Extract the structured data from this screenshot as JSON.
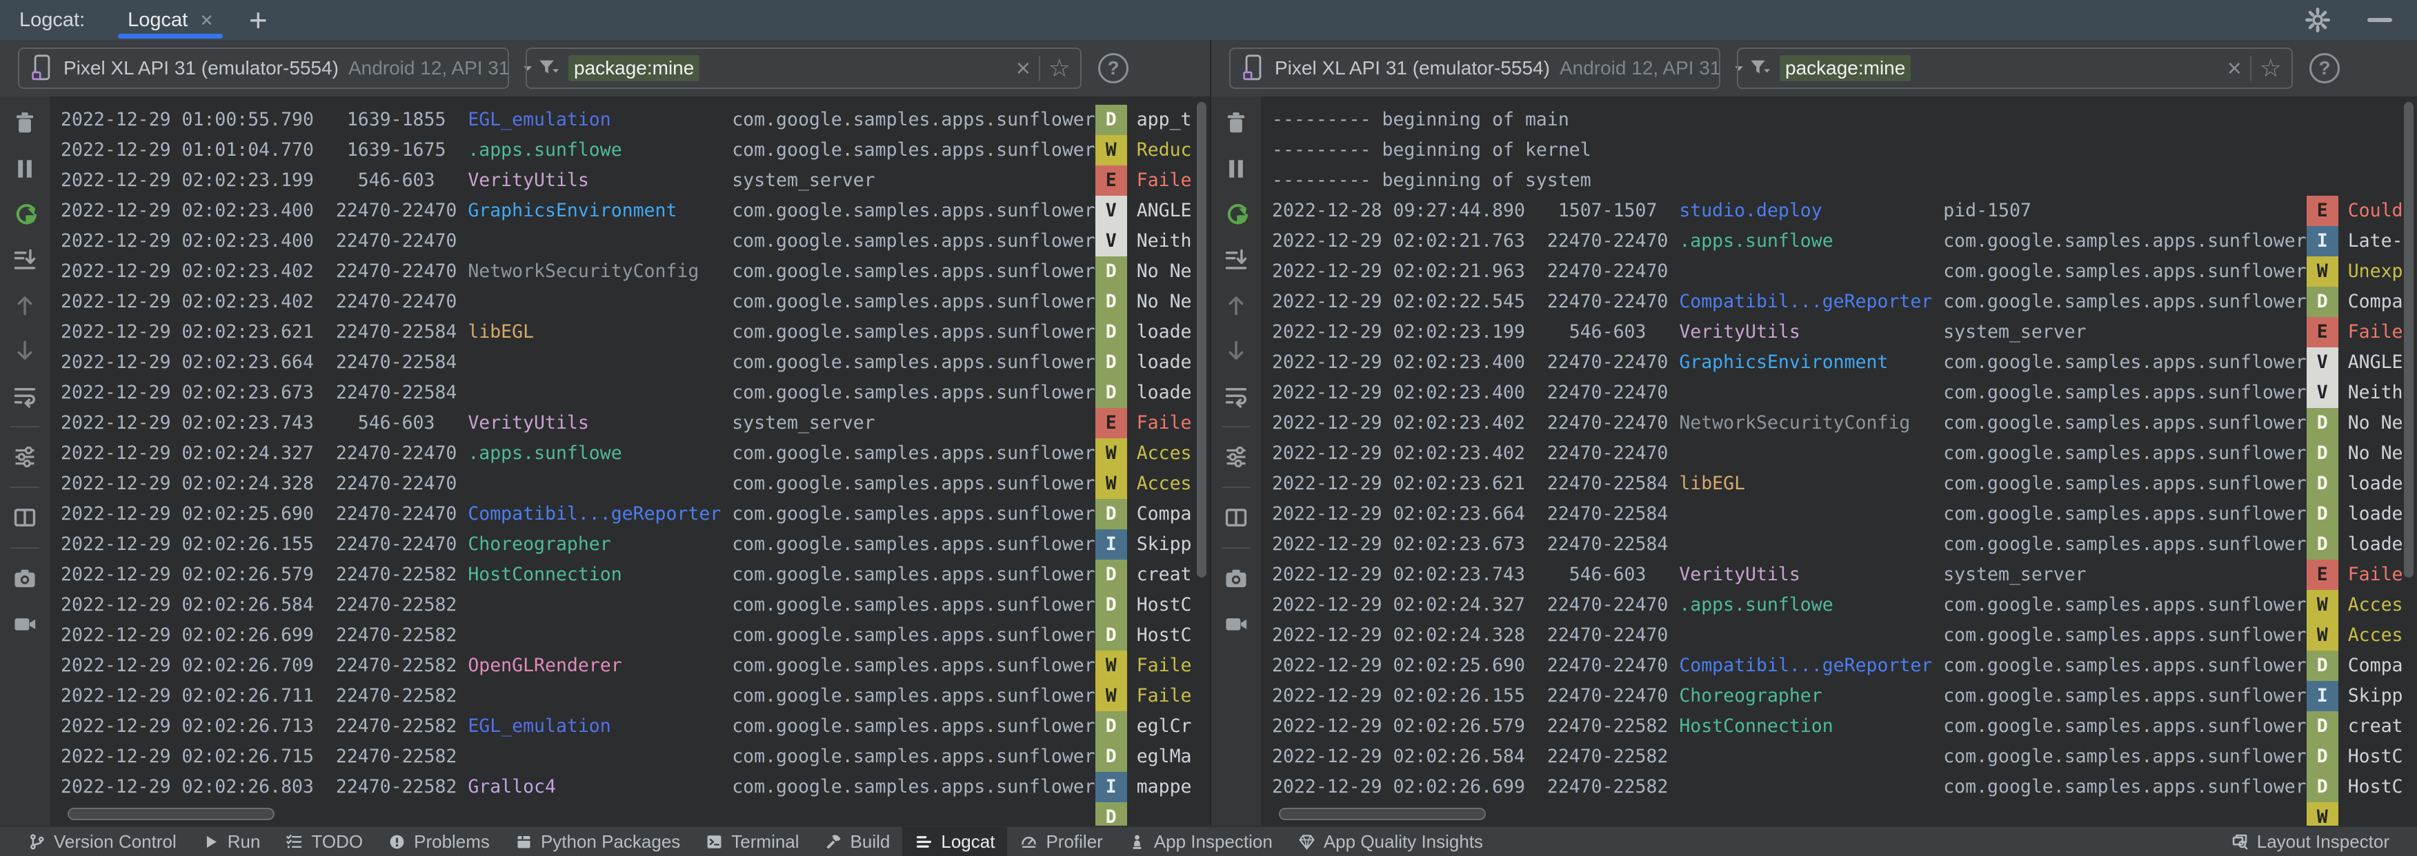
{
  "window": {
    "tab_strip": {
      "panel_label": "Logcat:",
      "tab": "Logcat",
      "close_glyph": "×",
      "add_glyph": "+"
    },
    "accent_color": "#3674F0"
  },
  "side_toolbar": {
    "groups": [
      [
        "clear-logcat",
        "pause-logcat",
        "restart-logcat",
        "scroll-to-end",
        "previous-occurrence",
        "next-occurrence",
        "soft-wrap"
      ],
      [
        "logcat-settings"
      ],
      [
        "split-panes"
      ],
      [
        "take-screenshot",
        "record-screen"
      ]
    ]
  },
  "filter_icons": {
    "clear_glyph": "×",
    "favorite_glyph": "☆",
    "help_glyph": "?"
  },
  "level_styles": {
    "D": {
      "badge_bg": "#8CA05D",
      "badge_fg": "#F6F9EF",
      "message": "#CDD3D9"
    },
    "W": {
      "badge_bg": "#C2B83F",
      "badge_fg": "#23251F",
      "message": "#C9BF45"
    },
    "E": {
      "badge_bg": "#CD6A5F",
      "badge_fg": "#2A2221",
      "message": "#F2766C"
    },
    "V": {
      "badge_bg": "#D9DAD6",
      "badge_fg": "#212325",
      "message": "#D2D6DA"
    },
    "I": {
      "badge_bg": "#48708D",
      "badge_fg": "#E5ECF2",
      "message": "#CDD3D9"
    }
  },
  "tag_colors": {
    "EGL_emulation": "#5372E8",
    ".apps.sunflowe": "#4FBA9C",
    "VerityUtils": "#CBA3CF",
    "GraphicsEnvironment": "#41A8F2",
    "NetworkSecurityConfig": "#8E969E",
    "libEGL": "#D8A96B",
    "Compatibil...geReporter": "#4C7EF0",
    "Choreographer": "#4FBA9C",
    "HostConnection": "#4FBA9C",
    "OpenGLRenderer": "#E08BB8",
    "Gralloc4": "#C2A3DE",
    "studio.deploy": "#4C7EF0"
  },
  "panes": [
    {
      "device": {
        "name": "Pixel XL API 31 (emulator-5554)",
        "details": "Android 12, API 31"
      },
      "filter": "package:mine",
      "rows": [
        {
          "time": "2022-12-29 01:00:55.790",
          "pid": "1639-1855",
          "tag": "EGL_emulation",
          "pkg": "com.google.samples.apps.sunflower",
          "level": "D",
          "msg": "app_t"
        },
        {
          "time": "2022-12-29 01:01:04.770",
          "pid": "1639-1675",
          "tag": ".apps.sunflowe",
          "pkg": "com.google.samples.apps.sunflower",
          "level": "W",
          "msg": "Reduc"
        },
        {
          "time": "2022-12-29 02:02:23.199",
          "pid": "546-603",
          "tag": "VerityUtils",
          "pkg": "system_server",
          "level": "E",
          "msg": "Faile"
        },
        {
          "time": "2022-12-29 02:02:23.400",
          "pid": "22470-22470",
          "tag": "GraphicsEnvironment",
          "pkg": "com.google.samples.apps.sunflower",
          "level": "V",
          "msg": "ANGLE"
        },
        {
          "time": "2022-12-29 02:02:23.400",
          "pid": "22470-22470",
          "tag": "",
          "pkg": "com.google.samples.apps.sunflower",
          "level": "V",
          "msg": "Neith"
        },
        {
          "time": "2022-12-29 02:02:23.402",
          "pid": "22470-22470",
          "tag": "NetworkSecurityConfig",
          "pkg": "com.google.samples.apps.sunflower",
          "level": "D",
          "msg": "No Ne"
        },
        {
          "time": "2022-12-29 02:02:23.402",
          "pid": "22470-22470",
          "tag": "",
          "pkg": "com.google.samples.apps.sunflower",
          "level": "D",
          "msg": "No Ne"
        },
        {
          "time": "2022-12-29 02:02:23.621",
          "pid": "22470-22584",
          "tag": "libEGL",
          "pkg": "com.google.samples.apps.sunflower",
          "level": "D",
          "msg": "loade"
        },
        {
          "time": "2022-12-29 02:02:23.664",
          "pid": "22470-22584",
          "tag": "",
          "pkg": "com.google.samples.apps.sunflower",
          "level": "D",
          "msg": "loade"
        },
        {
          "time": "2022-12-29 02:02:23.673",
          "pid": "22470-22584",
          "tag": "",
          "pkg": "com.google.samples.apps.sunflower",
          "level": "D",
          "msg": "loade"
        },
        {
          "time": "2022-12-29 02:02:23.743",
          "pid": "546-603",
          "tag": "VerityUtils",
          "pkg": "system_server",
          "level": "E",
          "msg": "Faile"
        },
        {
          "time": "2022-12-29 02:02:24.327",
          "pid": "22470-22470",
          "tag": ".apps.sunflowe",
          "pkg": "com.google.samples.apps.sunflower",
          "level": "W",
          "msg": "Acces"
        },
        {
          "time": "2022-12-29 02:02:24.328",
          "pid": "22470-22470",
          "tag": "",
          "pkg": "com.google.samples.apps.sunflower",
          "level": "W",
          "msg": "Acces"
        },
        {
          "time": "2022-12-29 02:02:25.690",
          "pid": "22470-22470",
          "tag": "Compatibil...geReporter",
          "pkg": "com.google.samples.apps.sunflower",
          "level": "D",
          "msg": "Compa"
        },
        {
          "time": "2022-12-29 02:02:26.155",
          "pid": "22470-22470",
          "tag": "Choreographer",
          "pkg": "com.google.samples.apps.sunflower",
          "level": "I",
          "msg": "Skipp"
        },
        {
          "time": "2022-12-29 02:02:26.579",
          "pid": "22470-22582",
          "tag": "HostConnection",
          "pkg": "com.google.samples.apps.sunflower",
          "level": "D",
          "msg": "creat"
        },
        {
          "time": "2022-12-29 02:02:26.584",
          "pid": "22470-22582",
          "tag": "",
          "pkg": "com.google.samples.apps.sunflower",
          "level": "D",
          "msg": "HostC"
        },
        {
          "time": "2022-12-29 02:02:26.699",
          "pid": "22470-22582",
          "tag": "",
          "pkg": "com.google.samples.apps.sunflower",
          "level": "D",
          "msg": "HostC"
        },
        {
          "time": "2022-12-29 02:02:26.709",
          "pid": "22470-22582",
          "tag": "OpenGLRenderer",
          "pkg": "com.google.samples.apps.sunflower",
          "level": "W",
          "msg": "Faile"
        },
        {
          "time": "2022-12-29 02:02:26.711",
          "pid": "22470-22582",
          "tag": "",
          "pkg": "com.google.samples.apps.sunflower",
          "level": "W",
          "msg": "Faile"
        },
        {
          "time": "2022-12-29 02:02:26.713",
          "pid": "22470-22582",
          "tag": "EGL_emulation",
          "pkg": "com.google.samples.apps.sunflower",
          "level": "D",
          "msg": "eglCr"
        },
        {
          "time": "2022-12-29 02:02:26.715",
          "pid": "22470-22582",
          "tag": "",
          "pkg": "com.google.samples.apps.sunflower",
          "level": "D",
          "msg": "eglMa"
        },
        {
          "time": "2022-12-29 02:02:26.803",
          "pid": "22470-22582",
          "tag": "Gralloc4",
          "pkg": "com.google.samples.apps.sunflower",
          "level": "I",
          "msg": "mappe"
        },
        {
          "partial": true,
          "level": "D"
        }
      ]
    },
    {
      "device": {
        "name": "Pixel XL API 31 (emulator-5554)",
        "details": "Android 12, API 31"
      },
      "filter": "package:mine",
      "rows": [
        {
          "banner": "--------- beginning of main"
        },
        {
          "banner": "--------- beginning of kernel"
        },
        {
          "banner": "--------- beginning of system"
        },
        {
          "time": "2022-12-28 09:27:44.890",
          "pid": "1507-1507",
          "tag": "studio.deploy",
          "pkg": "pid-1507",
          "level": "E",
          "msg": "Could"
        },
        {
          "time": "2022-12-29 02:02:21.763",
          "pid": "22470-22470",
          "tag": ".apps.sunflowe",
          "pkg": "com.google.samples.apps.sunflower",
          "level": "I",
          "msg": "Late-"
        },
        {
          "time": "2022-12-29 02:02:21.963",
          "pid": "22470-22470",
          "tag": "",
          "pkg": "com.google.samples.apps.sunflower",
          "level": "W",
          "msg": "Unexp"
        },
        {
          "time": "2022-12-29 02:02:22.545",
          "pid": "22470-22470",
          "tag": "Compatibil...geReporter",
          "pkg": "com.google.samples.apps.sunflower",
          "level": "D",
          "msg": "Compa"
        },
        {
          "time": "2022-12-29 02:02:23.199",
          "pid": "546-603",
          "tag": "VerityUtils",
          "pkg": "system_server",
          "level": "E",
          "msg": "Faile"
        },
        {
          "time": "2022-12-29 02:02:23.400",
          "pid": "22470-22470",
          "tag": "GraphicsEnvironment",
          "pkg": "com.google.samples.apps.sunflower",
          "level": "V",
          "msg": "ANGLE"
        },
        {
          "time": "2022-12-29 02:02:23.400",
          "pid": "22470-22470",
          "tag": "",
          "pkg": "com.google.samples.apps.sunflower",
          "level": "V",
          "msg": "Neith"
        },
        {
          "time": "2022-12-29 02:02:23.402",
          "pid": "22470-22470",
          "tag": "NetworkSecurityConfig",
          "pkg": "com.google.samples.apps.sunflower",
          "level": "D",
          "msg": "No Ne"
        },
        {
          "time": "2022-12-29 02:02:23.402",
          "pid": "22470-22470",
          "tag": "",
          "pkg": "com.google.samples.apps.sunflower",
          "level": "D",
          "msg": "No Ne"
        },
        {
          "time": "2022-12-29 02:02:23.621",
          "pid": "22470-22584",
          "tag": "libEGL",
          "pkg": "com.google.samples.apps.sunflower",
          "level": "D",
          "msg": "loade"
        },
        {
          "time": "2022-12-29 02:02:23.664",
          "pid": "22470-22584",
          "tag": "",
          "pkg": "com.google.samples.apps.sunflower",
          "level": "D",
          "msg": "loade"
        },
        {
          "time": "2022-12-29 02:02:23.673",
          "pid": "22470-22584",
          "tag": "",
          "pkg": "com.google.samples.apps.sunflower",
          "level": "D",
          "msg": "loade"
        },
        {
          "time": "2022-12-29 02:02:23.743",
          "pid": "546-603",
          "tag": "VerityUtils",
          "pkg": "system_server",
          "level": "E",
          "msg": "Faile"
        },
        {
          "time": "2022-12-29 02:02:24.327",
          "pid": "22470-22470",
          "tag": ".apps.sunflowe",
          "pkg": "com.google.samples.apps.sunflower",
          "level": "W",
          "msg": "Acces"
        },
        {
          "time": "2022-12-29 02:02:24.328",
          "pid": "22470-22470",
          "tag": "",
          "pkg": "com.google.samples.apps.sunflower",
          "level": "W",
          "msg": "Acces"
        },
        {
          "time": "2022-12-29 02:02:25.690",
          "pid": "22470-22470",
          "tag": "Compatibil...geReporter",
          "pkg": "com.google.samples.apps.sunflower",
          "level": "D",
          "msg": "Compa"
        },
        {
          "time": "2022-12-29 02:02:26.155",
          "pid": "22470-22470",
          "tag": "Choreographer",
          "pkg": "com.google.samples.apps.sunflower",
          "level": "I",
          "msg": "Skipp"
        },
        {
          "time": "2022-12-29 02:02:26.579",
          "pid": "22470-22582",
          "tag": "HostConnection",
          "pkg": "com.google.samples.apps.sunflower",
          "level": "D",
          "msg": "creat"
        },
        {
          "time": "2022-12-29 02:02:26.584",
          "pid": "22470-22582",
          "tag": "",
          "pkg": "com.google.samples.apps.sunflower",
          "level": "D",
          "msg": "HostC"
        },
        {
          "time": "2022-12-29 02:02:26.699",
          "pid": "22470-22582",
          "tag": "",
          "pkg": "com.google.samples.apps.sunflower",
          "level": "D",
          "msg": "HostC"
        },
        {
          "partial": true,
          "level": "W"
        }
      ]
    }
  ],
  "statusbar": {
    "items": [
      {
        "label": "Version Control",
        "icon": "version-control"
      },
      {
        "label": "Run",
        "icon": "run"
      },
      {
        "label": "TODO",
        "icon": "todo"
      },
      {
        "label": "Problems",
        "icon": "problems"
      },
      {
        "label": "Python Packages",
        "icon": "python-packages"
      },
      {
        "label": "Terminal",
        "icon": "terminal"
      },
      {
        "label": "Build",
        "icon": "build"
      },
      {
        "label": "Logcat",
        "icon": "logcat",
        "active": true
      },
      {
        "label": "Profiler",
        "icon": "profiler"
      },
      {
        "label": "App Inspection",
        "icon": "app-inspection"
      },
      {
        "label": "App Quality Insights",
        "icon": "app-quality-insights"
      }
    ],
    "right_items": [
      {
        "label": "Layout Inspector",
        "icon": "layout-inspector"
      }
    ]
  }
}
